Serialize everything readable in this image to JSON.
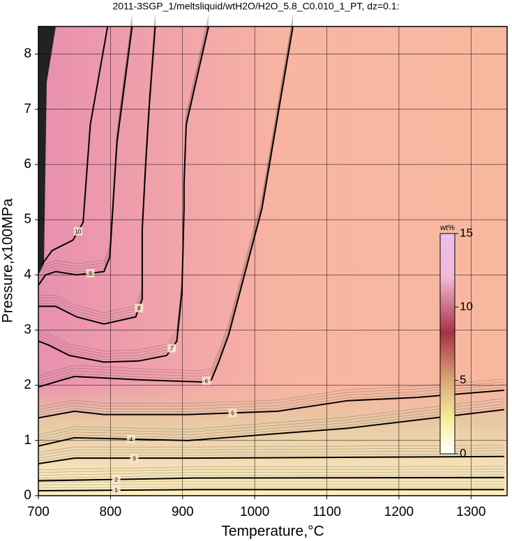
{
  "chart_data": {
    "type": "contour",
    "title": "2011-3SGP_1/meltsliquid/wtH2O/H2O_5.8_C0.010_1_PT, dz=0.1:",
    "x_label": "Temperature,°C",
    "y_label": "Pressure,x100MPa",
    "xlim": [
      700,
      1350
    ],
    "ylim": [
      0,
      8.5
    ],
    "xticks": [
      700,
      800,
      900,
      1000,
      1100,
      1200,
      1300
    ],
    "yticks": [
      0,
      1,
      2,
      3,
      4,
      5,
      6,
      7,
      8
    ],
    "grid": true,
    "contours": [
      {
        "level": 1,
        "x": [
          700,
          916,
          1346
        ],
        "y": [
          0.09,
          0.11,
          0.11
        ]
      },
      {
        "level": 2,
        "x": [
          700,
          916,
          1346
        ],
        "y": [
          0.27,
          0.32,
          0.33
        ]
      },
      {
        "level": 3,
        "x": [
          700,
          750,
          916,
          1346
        ],
        "y": [
          0.58,
          0.68,
          0.68,
          0.71
        ]
      },
      {
        "level": 4,
        "x": [
          700,
          750,
          907,
          1128,
          1346
        ],
        "y": [
          0.9,
          1.05,
          1.0,
          1.22,
          1.56
        ]
      },
      {
        "level": 5,
        "x": [
          700,
          750,
          791,
          907,
          1032,
          1128,
          1224,
          1346
        ],
        "y": [
          1.41,
          1.53,
          1.47,
          1.47,
          1.53,
          1.72,
          1.78,
          1.91
        ]
      },
      {
        "level": 6,
        "x": [
          700,
          734,
          750,
          839,
          926,
          940,
          950,
          964,
          1010,
          1053
        ],
        "y": [
          1.97,
          2.1,
          2.16,
          2.1,
          2.06,
          2.1,
          2.42,
          2.92,
          5.2,
          8.5
        ]
      },
      {
        "level": 7,
        "x": [
          700,
          714,
          743,
          791,
          839,
          878,
          892,
          899,
          902,
          902,
          905,
          936
        ],
        "y": [
          2.8,
          2.73,
          2.54,
          2.42,
          2.44,
          2.54,
          2.8,
          3.68,
          5.2,
          5.65,
          6.72,
          8.5
        ]
      },
      {
        "level": 8,
        "x": [
          700,
          724,
          753,
          791,
          835,
          844,
          844,
          849,
          854,
          862
        ],
        "y": [
          3.43,
          3.43,
          3.24,
          3.11,
          3.24,
          3.56,
          4.82,
          6.05,
          7.1,
          8.5
        ]
      },
      {
        "level": 9,
        "x": [
          700,
          710,
          724,
          753,
          791,
          799,
          809,
          830
        ],
        "y": [
          3.81,
          4.0,
          4.06,
          4.0,
          4.06,
          4.32,
          6.4,
          8.5
        ]
      },
      {
        "level": 10,
        "x": [
          705,
          719,
          748,
          762,
          772,
          796
        ],
        "y": [
          4.19,
          4.44,
          4.63,
          4.95,
          6.72,
          8.5
        ]
      }
    ],
    "colorbar": {
      "label": "wt%",
      "lim": [
        0,
        15
      ],
      "ticks": [
        0,
        5,
        10,
        15
      ]
    }
  }
}
